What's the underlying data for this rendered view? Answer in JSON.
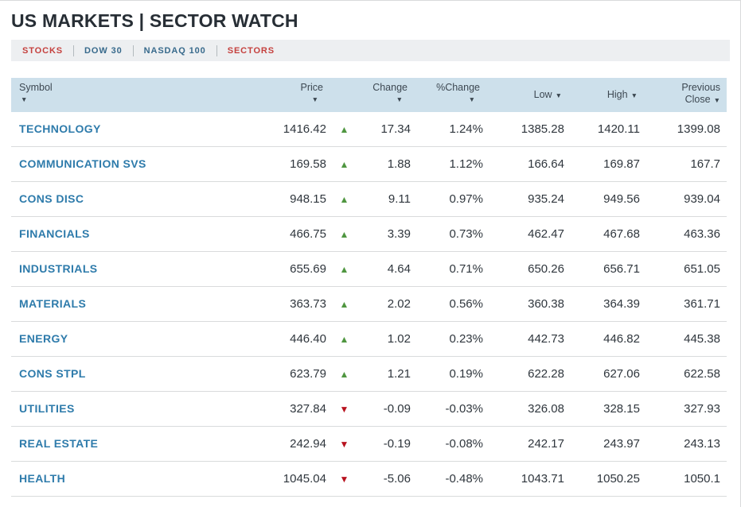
{
  "title": "US MARKETS | SECTOR WATCH",
  "tabs": [
    {
      "label": "STOCKS",
      "color": "red"
    },
    {
      "label": "DOW 30",
      "color": "blue"
    },
    {
      "label": "NASDAQ 100",
      "color": "blue"
    },
    {
      "label": "SECTORS",
      "color": "red"
    }
  ],
  "icons": {
    "up": "▲",
    "down": "▼",
    "sort": "▼"
  },
  "colors": {
    "up_green": "#4f9640",
    "down_red": "#b8131f",
    "tab_red": "#c5413e",
    "tab_blue": "#386a8c",
    "link_blue": "#2e7bab",
    "header_bg": "#cde0eb",
    "tabbar_bg": "#edeff1"
  },
  "table": {
    "headers": {
      "symbol": "Symbol",
      "price": "Price",
      "change": "Change",
      "pct_change": "%Change",
      "low": "Low",
      "high": "High",
      "prev_close_line1": "Previous",
      "prev_close_line2": "Close"
    },
    "rows": [
      {
        "symbol": "TECHNOLOGY",
        "price": "1416.42",
        "direction": "up",
        "change": "17.34",
        "pct_change": "1.24%",
        "low": "1385.28",
        "high": "1420.11",
        "prev_close": "1399.08"
      },
      {
        "symbol": "COMMUNICATION SVS",
        "price": "169.58",
        "direction": "up",
        "change": "1.88",
        "pct_change": "1.12%",
        "low": "166.64",
        "high": "169.87",
        "prev_close": "167.7"
      },
      {
        "symbol": "CONS DISC",
        "price": "948.15",
        "direction": "up",
        "change": "9.11",
        "pct_change": "0.97%",
        "low": "935.24",
        "high": "949.56",
        "prev_close": "939.04"
      },
      {
        "symbol": "FINANCIALS",
        "price": "466.75",
        "direction": "up",
        "change": "3.39",
        "pct_change": "0.73%",
        "low": "462.47",
        "high": "467.68",
        "prev_close": "463.36"
      },
      {
        "symbol": "INDUSTRIALS",
        "price": "655.69",
        "direction": "up",
        "change": "4.64",
        "pct_change": "0.71%",
        "low": "650.26",
        "high": "656.71",
        "prev_close": "651.05"
      },
      {
        "symbol": "MATERIALS",
        "price": "363.73",
        "direction": "up",
        "change": "2.02",
        "pct_change": "0.56%",
        "low": "360.38",
        "high": "364.39",
        "prev_close": "361.71"
      },
      {
        "symbol": "ENERGY",
        "price": "446.40",
        "direction": "up",
        "change": "1.02",
        "pct_change": "0.23%",
        "low": "442.73",
        "high": "446.82",
        "prev_close": "445.38"
      },
      {
        "symbol": "CONS STPL",
        "price": "623.79",
        "direction": "up",
        "change": "1.21",
        "pct_change": "0.19%",
        "low": "622.28",
        "high": "627.06",
        "prev_close": "622.58"
      },
      {
        "symbol": "UTILITIES",
        "price": "327.84",
        "direction": "down",
        "change": "-0.09",
        "pct_change": "-0.03%",
        "low": "326.08",
        "high": "328.15",
        "prev_close": "327.93"
      },
      {
        "symbol": "REAL ESTATE",
        "price": "242.94",
        "direction": "down",
        "change": "-0.19",
        "pct_change": "-0.08%",
        "low": "242.17",
        "high": "243.97",
        "prev_close": "243.13"
      },
      {
        "symbol": "HEALTH",
        "price": "1045.04",
        "direction": "down",
        "change": "-5.06",
        "pct_change": "-0.48%",
        "low": "1043.71",
        "high": "1050.25",
        "prev_close": "1050.1"
      }
    ]
  }
}
